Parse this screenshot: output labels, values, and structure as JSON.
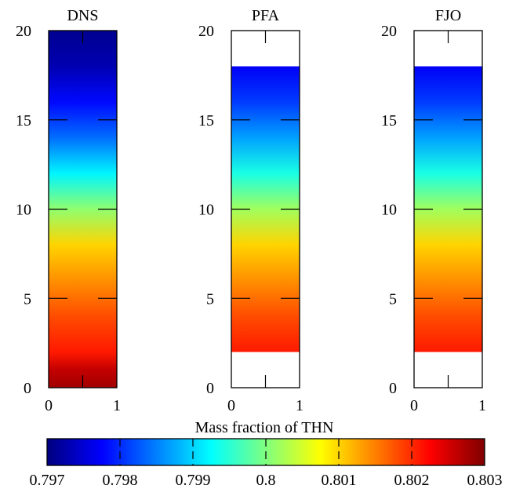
{
  "chart_data": {
    "type": "heatmap",
    "colormap": [
      "#00007f",
      "#0000ff",
      "#007fff",
      "#00ffff",
      "#7fff7f",
      "#ffff00",
      "#ff7f00",
      "#ff0000",
      "#7f0000"
    ],
    "panels": [
      {
        "title": "DNS",
        "xlim": [
          0,
          1
        ],
        "ylim": [
          0,
          20
        ],
        "data_yrange": [
          0,
          20
        ],
        "xticks": [
          "0",
          "1"
        ],
        "yticks": [
          "0",
          "5",
          "10",
          "15",
          "20"
        ],
        "profile": [
          {
            "y": 0,
            "value": 0.8028
          },
          {
            "y": 1,
            "value": 0.8026
          },
          {
            "y": 2,
            "value": 0.8021
          },
          {
            "y": 4,
            "value": 0.8018
          },
          {
            "y": 6,
            "value": 0.8014
          },
          {
            "y": 8,
            "value": 0.801
          },
          {
            "y": 10,
            "value": 0.8001
          },
          {
            "y": 12,
            "value": 0.7992
          },
          {
            "y": 14,
            "value": 0.7984
          },
          {
            "y": 16,
            "value": 0.7978
          },
          {
            "y": 18,
            "value": 0.7973
          },
          {
            "y": 20,
            "value": 0.7971
          }
        ]
      },
      {
        "title": "PFA",
        "xlim": [
          0,
          1
        ],
        "ylim": [
          0,
          20
        ],
        "data_yrange": [
          2,
          18
        ],
        "xticks": [
          "0",
          "1"
        ],
        "yticks": [
          "0",
          "5",
          "10",
          "15",
          "20"
        ],
        "profile": [
          {
            "y": 2,
            "value": 0.8021
          },
          {
            "y": 4,
            "value": 0.8018
          },
          {
            "y": 6,
            "value": 0.8014
          },
          {
            "y": 8,
            "value": 0.801
          },
          {
            "y": 10,
            "value": 0.8002
          },
          {
            "y": 12,
            "value": 0.7994
          },
          {
            "y": 14,
            "value": 0.7987
          },
          {
            "y": 16,
            "value": 0.7981
          },
          {
            "y": 18,
            "value": 0.7977
          }
        ]
      },
      {
        "title": "FJO",
        "xlim": [
          0,
          1
        ],
        "ylim": [
          0,
          20
        ],
        "data_yrange": [
          2,
          18
        ],
        "xticks": [
          "0",
          "1"
        ],
        "yticks": [
          "0",
          "5",
          "10",
          "15",
          "20"
        ],
        "profile": [
          {
            "y": 2,
            "value": 0.8021
          },
          {
            "y": 4,
            "value": 0.8018
          },
          {
            "y": 6,
            "value": 0.8014
          },
          {
            "y": 8,
            "value": 0.801
          },
          {
            "y": 10,
            "value": 0.8002
          },
          {
            "y": 12,
            "value": 0.7994
          },
          {
            "y": 14,
            "value": 0.7987
          },
          {
            "y": 16,
            "value": 0.7981
          },
          {
            "y": 18,
            "value": 0.7977
          }
        ]
      }
    ],
    "colorbar": {
      "title": "Mass fraction of THN",
      "min": 0.797,
      "max": 0.803,
      "ticks": [
        "0.797",
        "0.798",
        "0.799",
        "0.8",
        "0.801",
        "0.802",
        "0.803"
      ]
    }
  }
}
